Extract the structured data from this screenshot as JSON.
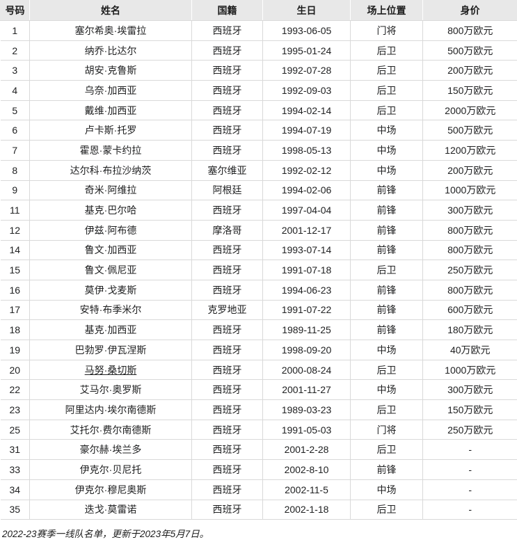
{
  "colors": {
    "header_bg": "#e8e8e8",
    "body_border": "#d9d9d9",
    "header_divider": "#ffffff",
    "text": "#202122"
  },
  "table": {
    "columns": [
      {
        "key": "num",
        "label": "号码"
      },
      {
        "key": "name",
        "label": "姓名"
      },
      {
        "key": "nat",
        "label": "国籍"
      },
      {
        "key": "dob",
        "label": "生日"
      },
      {
        "key": "pos",
        "label": "场上位置"
      },
      {
        "key": "val",
        "label": "身价"
      }
    ],
    "rows": [
      {
        "num": "1",
        "name": "塞尔希奥·埃雷拉",
        "nat": "西班牙",
        "dob": "1993-06-05",
        "pos": "门将",
        "val": "800万欧元",
        "name_is_link": false
      },
      {
        "num": "2",
        "name": "纳乔·比达尔",
        "nat": "西班牙",
        "dob": "1995-01-24",
        "pos": "后卫",
        "val": "500万欧元",
        "name_is_link": false
      },
      {
        "num": "3",
        "name": "胡安·克鲁斯",
        "nat": "西班牙",
        "dob": "1992-07-28",
        "pos": "后卫",
        "val": "200万欧元",
        "name_is_link": false
      },
      {
        "num": "4",
        "name": "乌奈·加西亚",
        "nat": "西班牙",
        "dob": "1992-09-03",
        "pos": "后卫",
        "val": "150万欧元",
        "name_is_link": false
      },
      {
        "num": "5",
        "name": "戴维·加西亚",
        "nat": "西班牙",
        "dob": "1994-02-14",
        "pos": "后卫",
        "val": "2000万欧元",
        "name_is_link": false
      },
      {
        "num": "6",
        "name": "卢卡斯·托罗",
        "nat": "西班牙",
        "dob": "1994-07-19",
        "pos": "中场",
        "val": "500万欧元",
        "name_is_link": false
      },
      {
        "num": "7",
        "name": "霍恩·蒙卡约拉",
        "nat": "西班牙",
        "dob": "1998-05-13",
        "pos": "中场",
        "val": "1200万欧元",
        "name_is_link": false
      },
      {
        "num": "8",
        "name": "达尔科·布拉沙纳茨",
        "nat": "塞尔维亚",
        "dob": "1992-02-12",
        "pos": "中场",
        "val": "200万欧元",
        "name_is_link": false
      },
      {
        "num": "9",
        "name": "奇米·阿维拉",
        "nat": "阿根廷",
        "dob": "1994-02-06",
        "pos": "前锋",
        "val": "1000万欧元",
        "name_is_link": false
      },
      {
        "num": "11",
        "name": "基克·巴尔哈",
        "nat": "西班牙",
        "dob": "1997-04-04",
        "pos": "前锋",
        "val": "300万欧元",
        "name_is_link": false
      },
      {
        "num": "12",
        "name": "伊兹·阿布德",
        "nat": "摩洛哥",
        "dob": "2001-12-17",
        "pos": "前锋",
        "val": "800万欧元",
        "name_is_link": false
      },
      {
        "num": "14",
        "name": "鲁文·加西亚",
        "nat": "西班牙",
        "dob": "1993-07-14",
        "pos": "前锋",
        "val": "800万欧元",
        "name_is_link": false
      },
      {
        "num": "15",
        "name": "鲁文·佩尼亚",
        "nat": "西班牙",
        "dob": "1991-07-18",
        "pos": "后卫",
        "val": "250万欧元",
        "name_is_link": false
      },
      {
        "num": "16",
        "name": "莫伊·戈麦斯",
        "nat": "西班牙",
        "dob": "1994-06-23",
        "pos": "前锋",
        "val": "800万欧元",
        "name_is_link": false
      },
      {
        "num": "17",
        "name": "安特·布季米尔",
        "nat": "克罗地亚",
        "dob": "1991-07-22",
        "pos": "前锋",
        "val": "600万欧元",
        "name_is_link": false
      },
      {
        "num": "18",
        "name": "基克·加西亚",
        "nat": "西班牙",
        "dob": "1989-11-25",
        "pos": "前锋",
        "val": "180万欧元",
        "name_is_link": false
      },
      {
        "num": "19",
        "name": "巴勃罗·伊瓦涅斯",
        "nat": "西班牙",
        "dob": "1998-09-20",
        "pos": "中场",
        "val": "40万欧元",
        "name_is_link": false
      },
      {
        "num": "20",
        "name": "马努·桑切斯",
        "nat": "西班牙",
        "dob": "2000-08-24",
        "pos": "后卫",
        "val": "1000万欧元",
        "name_is_link": true
      },
      {
        "num": "22",
        "name": "艾马尔·奥罗斯",
        "nat": "西班牙",
        "dob": "2001-11-27",
        "pos": "中场",
        "val": "300万欧元",
        "name_is_link": false
      },
      {
        "num": "23",
        "name": "阿里达内·埃尔南德斯",
        "nat": "西班牙",
        "dob": "1989-03-23",
        "pos": "后卫",
        "val": "150万欧元",
        "name_is_link": false
      },
      {
        "num": "25",
        "name": "艾托尔·费尔南德斯",
        "nat": "西班牙",
        "dob": "1991-05-03",
        "pos": "门将",
        "val": "250万欧元",
        "name_is_link": false
      },
      {
        "num": "31",
        "name": "豪尔赫·埃兰多",
        "nat": "西班牙",
        "dob": "2001-2-28",
        "pos": "后卫",
        "val": "-",
        "name_is_link": false
      },
      {
        "num": "33",
        "name": "伊克尔·贝尼托",
        "nat": "西班牙",
        "dob": "2002-8-10",
        "pos": "前锋",
        "val": "-",
        "name_is_link": false
      },
      {
        "num": "34",
        "name": "伊克尔·穆尼奥斯",
        "nat": "西班牙",
        "dob": "2002-11-5",
        "pos": "中场",
        "val": "-",
        "name_is_link": false
      },
      {
        "num": "35",
        "name": "迭戈·莫雷诺",
        "nat": "西班牙",
        "dob": "2002-1-18",
        "pos": "后卫",
        "val": "-",
        "name_is_link": false
      }
    ]
  },
  "footer": {
    "note": "2022-23赛季一线队名单，更新于2023年5月7日。"
  }
}
